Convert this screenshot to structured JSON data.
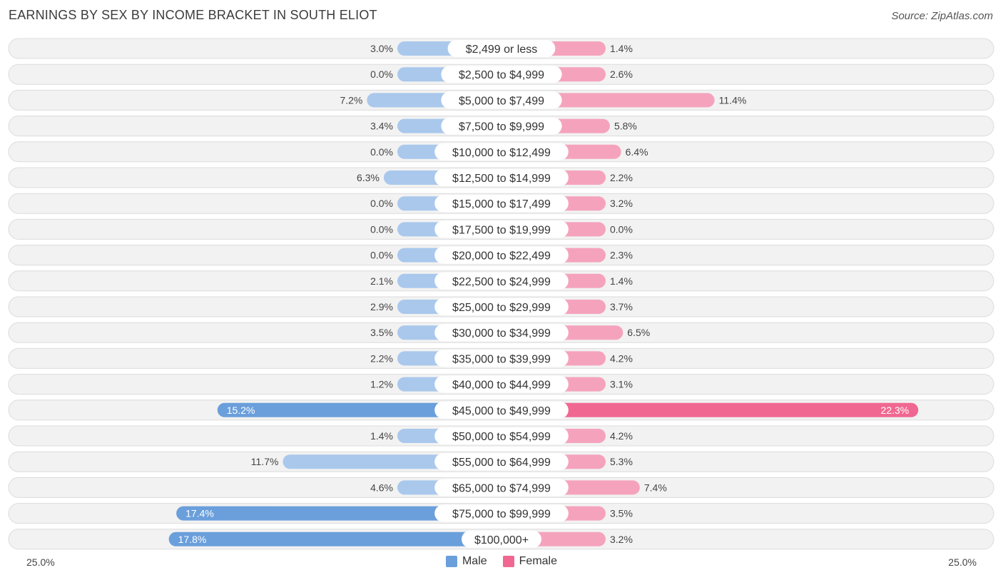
{
  "header": {
    "title": "EARNINGS BY SEX BY INCOME BRACKET IN SOUTH ELIOT",
    "source": "Source: ZipAtlas.com"
  },
  "axis": {
    "left_label": "25.0%",
    "right_label": "25.0%"
  },
  "legend": {
    "male": "Male",
    "female": "Female"
  },
  "colors": {
    "male_dark": "#6a9fdb",
    "male_light": "#a9c8ec",
    "female_dark": "#f06892",
    "female_light": "#f5a3bd",
    "row_bg": "#f2f2f2",
    "row_border": "#dcdcdc"
  },
  "chart_data": {
    "type": "bar",
    "title": "EARNINGS BY SEX BY INCOME BRACKET IN SOUTH ELIOT",
    "xlim": [
      -25,
      25
    ],
    "categories": [
      "$2,499 or less",
      "$2,500 to $4,999",
      "$5,000 to $7,499",
      "$7,500 to $9,999",
      "$10,000 to $12,499",
      "$12,500 to $14,999",
      "$15,000 to $17,499",
      "$17,500 to $19,999",
      "$20,000 to $22,499",
      "$22,500 to $24,999",
      "$25,000 to $29,999",
      "$30,000 to $34,999",
      "$35,000 to $39,999",
      "$40,000 to $44,999",
      "$45,000 to $49,999",
      "$50,000 to $54,999",
      "$55,000 to $64,999",
      "$65,000 to $74,999",
      "$75,000 to $99,999",
      "$100,000+"
    ],
    "series": [
      {
        "name": "Male",
        "values": [
          3.0,
          0.0,
          7.2,
          3.4,
          0.0,
          6.3,
          0.0,
          0.0,
          0.0,
          2.1,
          2.9,
          3.5,
          2.2,
          1.2,
          15.2,
          1.4,
          11.7,
          4.6,
          17.4,
          17.8
        ],
        "labels": [
          "3.0%",
          "0.0%",
          "7.2%",
          "3.4%",
          "0.0%",
          "6.3%",
          "0.0%",
          "0.0%",
          "0.0%",
          "2.1%",
          "2.9%",
          "3.5%",
          "2.2%",
          "1.2%",
          "15.2%",
          "1.4%",
          "11.7%",
          "4.6%",
          "17.4%",
          "17.8%"
        ]
      },
      {
        "name": "Female",
        "values": [
          1.4,
          2.6,
          11.4,
          5.8,
          6.4,
          2.2,
          3.2,
          0.0,
          2.3,
          1.4,
          3.7,
          6.5,
          4.2,
          3.1,
          22.3,
          4.2,
          5.3,
          7.4,
          3.5,
          3.2
        ],
        "labels": [
          "1.4%",
          "2.6%",
          "11.4%",
          "5.8%",
          "6.4%",
          "2.2%",
          "3.2%",
          "0.0%",
          "2.3%",
          "1.4%",
          "3.7%",
          "6.5%",
          "4.2%",
          "3.1%",
          "22.3%",
          "4.2%",
          "5.3%",
          "7.4%",
          "3.5%",
          "3.2%"
        ]
      }
    ]
  }
}
